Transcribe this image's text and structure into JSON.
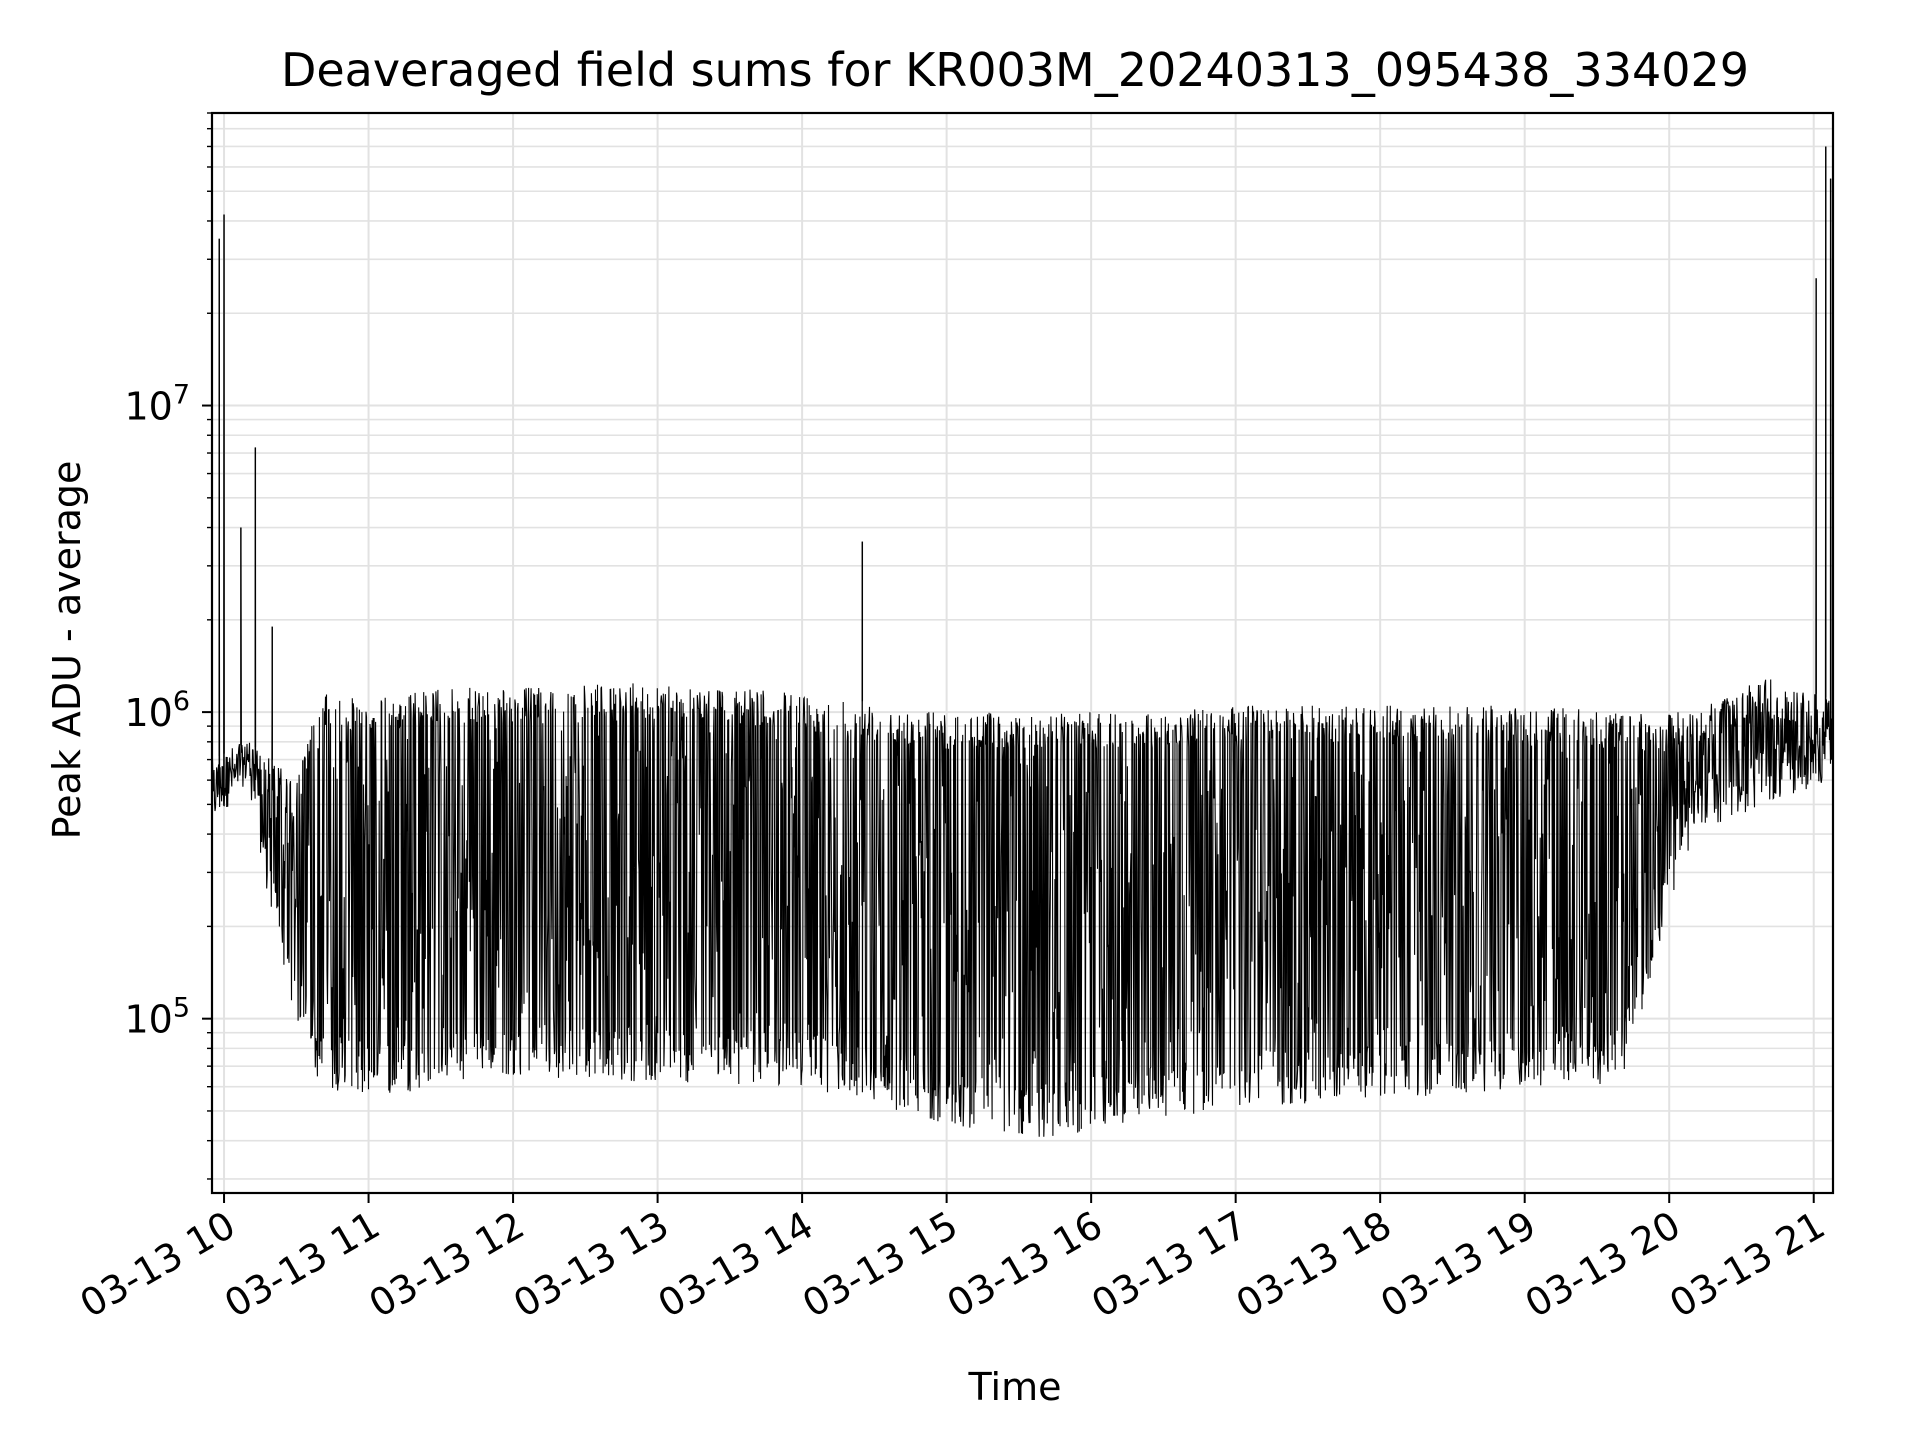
{
  "chart_data": {
    "type": "line",
    "title": "Deaveraged field sums for KR003M_20240313_095438_334029",
    "xlabel": "Time",
    "ylabel": "Peak ADU - average",
    "yscale": "log",
    "grid": true,
    "line_color": "#000000",
    "xlim": [
      "2024-03-13 09:55",
      "2024-03-13 21:08"
    ],
    "ylim": [
      27000,
      90000000
    ],
    "x_ticks": [
      "03-13 10",
      "03-13 11",
      "03-13 12",
      "03-13 13",
      "03-13 14",
      "03-13 15",
      "03-13 16",
      "03-13 17",
      "03-13 18",
      "03-13 19",
      "03-13 20",
      "03-13 21"
    ],
    "x_tick_values": [
      "2024-03-13 10:00",
      "2024-03-13 11:00",
      "2024-03-13 12:00",
      "2024-03-13 13:00",
      "2024-03-13 14:00",
      "2024-03-13 15:00",
      "2024-03-13 16:00",
      "2024-03-13 17:00",
      "2024-03-13 18:00",
      "2024-03-13 19:00",
      "2024-03-13 20:00",
      "2024-03-13 21:00"
    ],
    "y_ticks": [
      {
        "value": 100000,
        "base": "10",
        "exp": "5"
      },
      {
        "value": 1000000,
        "base": "10",
        "exp": "6"
      },
      {
        "value": 10000000,
        "base": "10",
        "exp": "7"
      }
    ],
    "envelope_points": [
      {
        "x": "2024-03-13 09:55",
        "upper": 700000,
        "lower": 420000
      },
      {
        "x": "2024-03-13 10:10",
        "upper": 800000,
        "lower": 600000
      },
      {
        "x": "2024-03-13 10:20",
        "upper": 700000,
        "lower": 200000
      },
      {
        "x": "2024-03-13 10:30",
        "upper": 600000,
        "lower": 100000
      },
      {
        "x": "2024-03-13 10:40",
        "upper": 1150000,
        "lower": 60000
      },
      {
        "x": "2024-03-13 11:00",
        "upper": 1100000,
        "lower": 55000
      },
      {
        "x": "2024-03-13 11:30",
        "upper": 1200000,
        "lower": 60000
      },
      {
        "x": "2024-03-13 12:00",
        "upper": 1200000,
        "lower": 65000
      },
      {
        "x": "2024-03-13 13:00",
        "upper": 1250000,
        "lower": 62000
      },
      {
        "x": "2024-03-13 14:00",
        "upper": 1150000,
        "lower": 60000
      },
      {
        "x": "2024-03-13 15:00",
        "upper": 1000000,
        "lower": 45000
      },
      {
        "x": "2024-03-13 15:45",
        "upper": 1000000,
        "lower": 40000
      },
      {
        "x": "2024-03-13 16:30",
        "upper": 1000000,
        "lower": 48000
      },
      {
        "x": "2024-03-13 17:00",
        "upper": 1050000,
        "lower": 50000
      },
      {
        "x": "2024-03-13 18:00",
        "upper": 1050000,
        "lower": 55000
      },
      {
        "x": "2024-03-13 19:00",
        "upper": 1050000,
        "lower": 58000
      },
      {
        "x": "2024-03-13 19:40",
        "upper": 1000000,
        "lower": 62000
      },
      {
        "x": "2024-03-13 20:10",
        "upper": 1000000,
        "lower": 400000
      },
      {
        "x": "2024-03-13 20:40",
        "upper": 1300000,
        "lower": 500000
      },
      {
        "x": "2024-03-13 21:08",
        "upper": 1100000,
        "lower": 600000
      }
    ],
    "spikes": [
      {
        "x": "2024-03-13 09:58",
        "y": 35000000
      },
      {
        "x": "2024-03-13 10:00",
        "y": 42000000
      },
      {
        "x": "2024-03-13 10:07",
        "y": 4000000
      },
      {
        "x": "2024-03-13 10:13",
        "y": 7300000
      },
      {
        "x": "2024-03-13 10:20",
        "y": 1900000
      },
      {
        "x": "2024-03-13 14:25",
        "y": 3600000
      },
      {
        "x": "2024-03-13 21:01",
        "y": 26000000
      },
      {
        "x": "2024-03-13 21:05",
        "y": 70000000
      },
      {
        "x": "2024-03-13 21:07",
        "y": 55000000
      }
    ]
  }
}
